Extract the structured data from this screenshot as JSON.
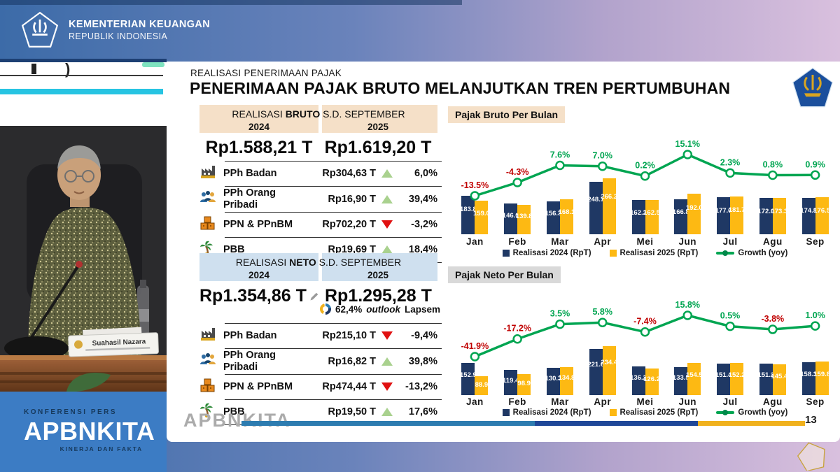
{
  "header": {
    "ministry": "KEMENTERIAN KEUANGAN",
    "republic": "REPUBLIK INDONESIA"
  },
  "video": {
    "nameplate": "Suahasil Nazara"
  },
  "banner": {
    "kicker": "KONFERENSI PERS",
    "brand": "APBNKITA",
    "tagline": "KINERJA DAN FAKTA"
  },
  "slide": {
    "kicker": "REALISASI PENERIMAAN PAJAK",
    "title": "PENERIMAAN PAJAK BRUTO MELANJUTKAN TREN PERTUMBUHAN",
    "watermark": "APBNKITA",
    "page_number": "13",
    "bruto_table": {
      "title_pre": "REALISASI ",
      "title_bold": "BRUTO",
      "title_post": " S.D. SEPTEMBER",
      "col_2024": "2024",
      "col_2025": "2025",
      "total_2024": "Rp1.588,21 T",
      "total_2025": "Rp1.619,20 T",
      "rows": [
        {
          "icon": "factory",
          "label": "PPh Badan",
          "value": "Rp304,63 T",
          "dir": "up",
          "pct": "6,0%"
        },
        {
          "icon": "people",
          "label": "PPh Orang Pribadi",
          "value": "Rp16,90 T",
          "dir": "up",
          "pct": "39,4%"
        },
        {
          "icon": "boxes",
          "label": "PPN & PPnBM",
          "value": "Rp702,20 T",
          "dir": "down",
          "pct": "-3,2%"
        },
        {
          "icon": "palm",
          "label": "PBB",
          "value": "Rp19,69 T",
          "dir": "up",
          "pct": "18,4%"
        }
      ]
    },
    "neto_table": {
      "title_pre": "REALISASI ",
      "title_bold": "NETO",
      "title_post": " S.D. SEPTEMBER",
      "col_2024": "2024",
      "col_2025": "2025",
      "total_2024": "Rp1.354,86 T",
      "total_2025": "Rp1.295,28 T",
      "outlook_pct": "62,4%",
      "outlook_word": "outlook",
      "outlook_suffix": "Lapsem",
      "rows": [
        {
          "icon": "factory",
          "label": "PPh Badan",
          "value": "Rp215,10 T",
          "dir": "down",
          "pct": "-9,4%"
        },
        {
          "icon": "people",
          "label": "PPh Orang Pribadi",
          "value": "Rp16,82 T",
          "dir": "up",
          "pct": "39,8%"
        },
        {
          "icon": "boxes",
          "label": "PPN & PPnBM",
          "value": "Rp474,44 T",
          "dir": "down",
          "pct": "-13,2%"
        },
        {
          "icon": "palm",
          "label": "PBB",
          "value": "Rp19,50 T",
          "dir": "up",
          "pct": "17,6%"
        }
      ]
    }
  },
  "theme": {
    "navy": "#1f3864",
    "gold": "#fdb913",
    "green": "#00a551",
    "red": "#c00000",
    "bruto_header_bg": "#f5e0c8",
    "neto_header_bg": "#cfe0ef",
    "banner_blue": "#3c7cc4"
  },
  "chart_data": [
    {
      "type": "bar",
      "title": "Pajak Bruto Per Bulan",
      "categories": [
        "Jan",
        "Feb",
        "Mar",
        "Apr",
        "Mei",
        "Jun",
        "Jul",
        "Agu",
        "Sep"
      ],
      "series": [
        {
          "name": "Realisasi 2024 (RpT)",
          "values": [
            183.8,
            146.0,
            156.3,
            248.7,
            162.2,
            166.8,
            177.6,
            172.0,
            174.8
          ]
        },
        {
          "name": "Realisasi 2025 (RpT)",
          "values": [
            159.0,
            139.8,
            168.1,
            266.2,
            162.5,
            192.0,
            181.7,
            173.3,
            176.5
          ]
        }
      ],
      "growth": {
        "name": "Growth (yoy)",
        "values": [
          -13.5,
          -4.3,
          7.6,
          7.0,
          0.2,
          15.1,
          2.3,
          0.8,
          0.9
        ],
        "labels": [
          "-13.5%",
          "-4.3%",
          "7.6%",
          "7.0%",
          "0.2%",
          "15.1%",
          "2.3%",
          "0.8%",
          "0.9%"
        ]
      },
      "legend": [
        "Realisasi 2024 (RpT)",
        "Realisasi 2025 (RpT)",
        "Growth (yoy)"
      ],
      "ylabel": "RpT",
      "grid": false,
      "legend_position": "bottom"
    },
    {
      "type": "bar",
      "title": "Pajak Neto Per Bulan",
      "categories": [
        "Jan",
        "Feb",
        "Mar",
        "Apr",
        "Mei",
        "Jun",
        "Jul",
        "Agu",
        "Sep"
      ],
      "series": [
        {
          "name": "Realisasi 2024 (RpT)",
          "values": [
            152.9,
            119.4,
            130.3,
            221.6,
            136.2,
            133.5,
            151.4,
            151.2,
            158.3
          ]
        },
        {
          "name": "Realisasi 2025 (RpT)",
          "values": [
            88.9,
            98.9,
            134.8,
            234.4,
            126.2,
            154.5,
            152.2,
            145.4,
            159.8
          ]
        }
      ],
      "growth": {
        "name": "Growth (yoy)",
        "values": [
          -41.9,
          -17.2,
          3.5,
          5.8,
          -7.4,
          15.8,
          0.5,
          -3.8,
          1.0
        ],
        "labels": [
          "-41.9%",
          "-17.2%",
          "3.5%",
          "5.8%",
          "-7.4%",
          "15.8%",
          "0.5%",
          "-3.8%",
          "1.0%"
        ]
      },
      "legend": [
        "Realisasi 2024 (RpT)",
        "Realisasi 2025 (RpT)",
        "Growth (yoy)"
      ],
      "ylabel": "RpT",
      "grid": false,
      "legend_position": "bottom"
    }
  ]
}
